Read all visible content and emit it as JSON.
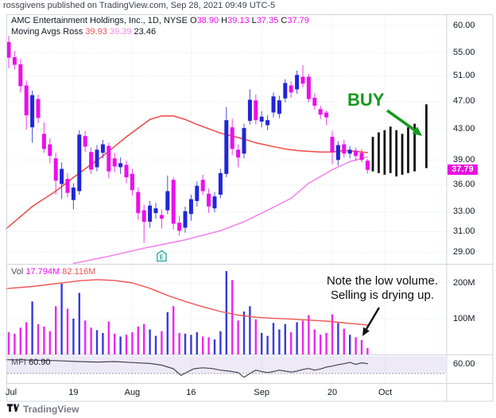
{
  "attribution": "rossgivens published on TradingView.com, Sep 28, 2021 09:49 UTC-5",
  "watermark": {
    "text": "TradingView"
  },
  "legend": {
    "title": "AMC Entertainment Holdings, Inc., 1D, NYSE",
    "ohlc": [
      {
        "k": "O",
        "v": "38.90"
      },
      {
        "k": "H",
        "v": "39.13"
      },
      {
        "k": "L",
        "v": "37.35"
      },
      {
        "k": "C",
        "v": "37.79"
      }
    ],
    "ma_label": "Moving Avgs Ross",
    "ma_values": [
      {
        "v": "39.93",
        "color": "#ef5350"
      },
      {
        "v": "39.39",
        "color": "#f387ec"
      },
      {
        "v": "23.46",
        "color": "#131722"
      }
    ]
  },
  "volume_legend": {
    "label": "Vol",
    "value": "17.794M",
    "ma_value": "82.116M"
  },
  "mfi_legend": {
    "label": "MFI",
    "value": "60.90"
  },
  "price_axis": {
    "ticks": [
      "60.00",
      "55.00",
      "51.00",
      "47.00",
      "43.00",
      "39.00",
      "36.00",
      "33.00",
      "31.00",
      "29.00"
    ],
    "last_price_badge": "37.79"
  },
  "volume_axis": {
    "ticks": [
      "200M",
      "100M"
    ]
  },
  "mfi_axis": {
    "ticks": [
      "60.00"
    ]
  },
  "time_axis": {
    "labels": [
      {
        "text": "Jul",
        "i": 0
      },
      {
        "text": "19",
        "i": 11
      },
      {
        "text": "Aug",
        "i": 21
      },
      {
        "text": "16",
        "i": 31
      },
      {
        "text": "Sep",
        "i": 43
      },
      {
        "text": "20",
        "i": 55
      },
      {
        "text": "Oct",
        "i": 64
      }
    ]
  },
  "annotations": {
    "buy": {
      "text": "BUY",
      "color": "#149a1e"
    },
    "note": {
      "line1": "Note the low volume.",
      "line2": "Selling is drying up."
    },
    "earnings_marker": "E"
  },
  "colors": {
    "up": "#2126d9",
    "down": "#ec0eec",
    "red_ma": "#ef5350",
    "pink_ma": "#f387ec",
    "vol_ma": "#ef5350",
    "mfi_line": "#434651",
    "mfi_band": "rgba(126,87,194,0.13)",
    "buy_green": "#149a1e",
    "badge_bg": "#ea0fe0",
    "grid": "#e6e9f0",
    "frame": "#d1d4dc",
    "projection": "#111111"
  },
  "chart_data": {
    "type": "candlestick+volume+mfi",
    "symbol": "AMC Entertainment Holdings, Inc.",
    "interval": "1D",
    "exchange": "NYSE",
    "price_scale": "log",
    "price_range_visible": [
      28.0,
      62.2
    ],
    "volume_range_m": [
      0,
      260
    ],
    "mfi_range": [
      0,
      100
    ],
    "candles": {
      "columns": [
        "date",
        "open",
        "high",
        "low",
        "close",
        "volume_m"
      ],
      "rows": [
        [
          "Jul 1",
          56.9,
          58.0,
          52.3,
          54.1,
          62
        ],
        [
          "Jul 2",
          54.2,
          55.3,
          52.1,
          52.9,
          58
        ],
        [
          "Jul 6",
          53.0,
          53.9,
          48.4,
          49.4,
          75
        ],
        [
          "Jul 7",
          49.5,
          50.3,
          43.0,
          45.0,
          90
        ],
        [
          "Jul 8",
          43.3,
          48.7,
          41.2,
          48.0,
          148
        ],
        [
          "Jul 9",
          47.4,
          48.1,
          43.9,
          44.6,
          85
        ],
        [
          "Jul 12",
          42.4,
          44.0,
          39.9,
          40.4,
          78
        ],
        [
          "Jul 13",
          41.0,
          41.8,
          38.6,
          39.5,
          65
        ],
        [
          "Jul 14",
          39.2,
          39.9,
          34.9,
          36.5,
          135
        ],
        [
          "Jul 15",
          36.1,
          38.7,
          34.4,
          37.9,
          198
        ],
        [
          "Jul 16",
          36.7,
          37.4,
          34.6,
          35.1,
          128
        ],
        [
          "Jul 19",
          34.3,
          36.2,
          33.3,
          35.7,
          100
        ],
        [
          "Jul 20",
          35.3,
          42.9,
          34.9,
          42.3,
          172
        ],
        [
          "Jul 21",
          42.1,
          42.8,
          40.0,
          40.7,
          95
        ],
        [
          "Jul 22",
          40.0,
          40.6,
          37.3,
          37.8,
          75
        ],
        [
          "Jul 23",
          38.1,
          40.9,
          37.6,
          40.3,
          68
        ],
        [
          "Jul 26",
          39.9,
          41.6,
          39.2,
          41.0,
          60
        ],
        [
          "Jul 27",
          40.8,
          41.2,
          36.8,
          37.6,
          92
        ],
        [
          "Jul 28",
          39.2,
          39.9,
          37.5,
          38.2,
          58
        ],
        [
          "Jul 29",
          38.1,
          39.3,
          37.3,
          38.6,
          50
        ],
        [
          "Jul 30",
          38.4,
          38.9,
          36.2,
          36.9,
          55
        ],
        [
          "Aug 2",
          37.3,
          37.9,
          34.8,
          35.4,
          62
        ],
        [
          "Aug 3",
          35.2,
          35.7,
          32.2,
          32.9,
          78
        ],
        [
          "Aug 4",
          33.2,
          33.8,
          29.9,
          32.0,
          85
        ],
        [
          "Aug 5",
          32.0,
          34.2,
          31.4,
          33.7,
          70
        ],
        [
          "Aug 6",
          32.9,
          34.0,
          32.3,
          33.4,
          52
        ],
        [
          "Aug 9",
          32.7,
          33.3,
          31.3,
          32.3,
          65
        ],
        [
          "Aug 10",
          33.2,
          37.1,
          32.8,
          35.3,
          118
        ],
        [
          "Aug 11",
          36.6,
          36.9,
          31.2,
          31.8,
          135
        ],
        [
          "Aug 12",
          31.9,
          32.6,
          30.6,
          31.1,
          60
        ],
        [
          "Aug 13",
          31.4,
          33.6,
          30.9,
          33.1,
          58
        ],
        [
          "Aug 16",
          32.8,
          34.9,
          32.1,
          34.4,
          55
        ],
        [
          "Aug 17",
          34.2,
          36.4,
          33.6,
          35.9,
          62
        ],
        [
          "Aug 18",
          36.6,
          37.2,
          34.9,
          35.3,
          50
        ],
        [
          "Aug 19",
          35.0,
          35.6,
          32.9,
          33.6,
          48
        ],
        [
          "Aug 20",
          33.4,
          35.2,
          33.0,
          34.7,
          42
        ],
        [
          "Aug 23",
          34.9,
          37.9,
          34.5,
          37.4,
          65
        ],
        [
          "Aug 24",
          37.3,
          46.2,
          36.9,
          44.3,
          233
        ],
        [
          "Aug 25",
          43.3,
          44.5,
          39.6,
          40.4,
          208
        ],
        [
          "Aug 26",
          40.3,
          41.0,
          38.1,
          39.3,
          95
        ],
        [
          "Aug 27",
          39.8,
          43.8,
          39.2,
          43.2,
          120
        ],
        [
          "Aug 30",
          44.2,
          48.9,
          43.7,
          47.3,
          135
        ],
        [
          "Aug 31",
          47.2,
          48.1,
          43.7,
          44.3,
          98
        ],
        [
          "Sep 1",
          44.1,
          45.6,
          43.3,
          44.8,
          60
        ],
        [
          "Sep 2",
          43.6,
          45.0,
          42.9,
          44.3,
          52
        ],
        [
          "Sep 3",
          45.4,
          48.4,
          44.7,
          47.8,
          88
        ],
        [
          "Sep 7",
          45.2,
          47.9,
          44.6,
          47.2,
          70
        ],
        [
          "Sep 8",
          47.5,
          50.5,
          46.9,
          49.9,
          85
        ],
        [
          "Sep 9",
          49.5,
          50.2,
          47.6,
          48.4,
          62
        ],
        [
          "Sep 10",
          48.9,
          51.9,
          48.2,
          51.2,
          90
        ],
        [
          "Sep 13",
          50.9,
          52.8,
          49.2,
          49.8,
          95
        ],
        [
          "Sep 14",
          50.9,
          51.4,
          46.9,
          47.4,
          110
        ],
        [
          "Sep 15",
          47.6,
          48.2,
          45.8,
          46.4,
          70
        ],
        [
          "Sep 16",
          45.9,
          46.4,
          44.5,
          45.1,
          55
        ],
        [
          "Sep 17",
          45.4,
          45.7,
          43.6,
          44.7,
          60
        ],
        [
          "Sep 20",
          42.0,
          42.8,
          38.5,
          40.0,
          112
        ],
        [
          "Sep 21",
          39.0,
          41.4,
          38.3,
          40.9,
          88
        ],
        [
          "Sep 22",
          41.0,
          41.6,
          39.3,
          39.8,
          72
        ],
        [
          "Sep 23",
          39.8,
          40.8,
          39.2,
          40.3,
          55
        ],
        [
          "Sep 24",
          40.2,
          40.6,
          38.9,
          39.5,
          48
        ],
        [
          "Sep 27",
          39.9,
          40.4,
          38.7,
          39.0,
          40
        ],
        [
          "Sep 28",
          38.9,
          39.13,
          37.35,
          37.79,
          17.794
        ]
      ]
    },
    "earnings_marker_index": 26,
    "red_ma": {
      "name": "Moving Avg 39.93",
      "points_index_price": [
        [
          -0.4,
          31.3
        ],
        [
          4,
          33.6
        ],
        [
          8,
          35.3
        ],
        [
          12,
          37.4
        ],
        [
          16,
          39.5
        ],
        [
          20,
          42.0
        ],
        [
          24,
          44.4
        ],
        [
          26,
          44.9
        ],
        [
          28,
          44.9
        ],
        [
          30,
          44.4
        ],
        [
          32,
          43.7
        ],
        [
          34,
          43.1
        ],
        [
          36,
          42.5
        ],
        [
          38,
          42.1
        ],
        [
          40,
          41.7
        ],
        [
          42,
          41.2
        ],
        [
          45,
          40.7
        ],
        [
          47,
          40.4
        ],
        [
          49,
          40.2
        ],
        [
          51,
          40.1
        ],
        [
          53,
          40.0
        ],
        [
          55,
          40.0
        ],
        [
          57,
          40.2
        ],
        [
          59,
          40.1
        ],
        [
          61,
          39.93
        ]
      ]
    },
    "pink_ma": {
      "name": "Moving Avg 39.39",
      "points_index_price": [
        [
          11,
          28.0
        ],
        [
          17,
          28.65
        ],
        [
          23,
          29.4
        ],
        [
          30,
          30.2
        ],
        [
          36,
          31.1
        ],
        [
          40,
          32.0
        ],
        [
          44,
          33.2
        ],
        [
          48,
          34.5
        ],
        [
          51,
          36.2
        ],
        [
          55,
          37.8
        ],
        [
          58,
          38.8
        ],
        [
          61,
          39.39
        ]
      ]
    },
    "vol_ma": {
      "name": "Volume MA 82.116M",
      "points_index_millions": [
        [
          -0.4,
          184
        ],
        [
          4,
          190
        ],
        [
          8,
          198
        ],
        [
          12,
          206
        ],
        [
          15,
          209
        ],
        [
          18,
          207
        ],
        [
          21,
          200
        ],
        [
          24,
          185
        ],
        [
          27,
          165
        ],
        [
          30,
          148
        ],
        [
          33,
          133
        ],
        [
          36,
          120
        ],
        [
          39,
          110
        ],
        [
          42,
          104
        ],
        [
          45,
          101
        ],
        [
          48,
          99
        ],
        [
          51,
          96
        ],
        [
          54,
          93
        ],
        [
          56,
          90
        ],
        [
          58,
          87
        ],
        [
          60,
          84
        ],
        [
          61,
          82.1
        ]
      ]
    },
    "mfi": {
      "name": "MFI 60.90",
      "points_index_value": [
        [
          -0.4,
          78
        ],
        [
          4,
          76
        ],
        [
          8,
          74
        ],
        [
          12,
          70
        ],
        [
          15,
          68
        ],
        [
          18,
          70
        ],
        [
          21,
          66
        ],
        [
          24,
          62
        ],
        [
          26,
          55
        ],
        [
          28,
          40
        ],
        [
          29.3,
          12
        ],
        [
          30.5,
          28
        ],
        [
          31.5,
          40
        ],
        [
          33,
          44
        ],
        [
          34.5,
          41
        ],
        [
          36,
          34
        ],
        [
          37.5,
          30
        ],
        [
          39,
          24
        ],
        [
          40,
          4
        ],
        [
          41,
          20
        ],
        [
          42,
          34
        ],
        [
          43,
          28
        ],
        [
          44,
          24
        ],
        [
          45,
          28
        ],
        [
          46,
          34
        ],
        [
          47,
          30
        ],
        [
          48,
          26
        ],
        [
          49,
          30
        ],
        [
          50,
          37
        ],
        [
          51,
          41
        ],
        [
          52,
          34
        ],
        [
          53,
          39
        ],
        [
          54,
          47
        ],
        [
          55,
          51
        ],
        [
          56,
          57
        ],
        [
          57,
          61
        ],
        [
          58,
          67
        ],
        [
          59,
          58
        ],
        [
          60,
          65
        ],
        [
          61,
          60.9
        ]
      ],
      "band": [
        20,
        80
      ]
    },
    "projection_bars_index_high_low": [
      [
        61.9,
        42.0,
        37.6
      ],
      [
        62.9,
        42.6,
        37.4
      ],
      [
        63.9,
        42.9,
        37.2
      ],
      [
        64.9,
        43.4,
        37.4
      ],
      [
        65.9,
        42.9,
        37.0
      ],
      [
        66.9,
        42.4,
        37.2
      ],
      [
        67.9,
        43.3,
        37.4
      ],
      [
        69.0,
        43.8,
        37.6
      ],
      [
        71.0,
        46.6,
        38.0
      ]
    ]
  }
}
